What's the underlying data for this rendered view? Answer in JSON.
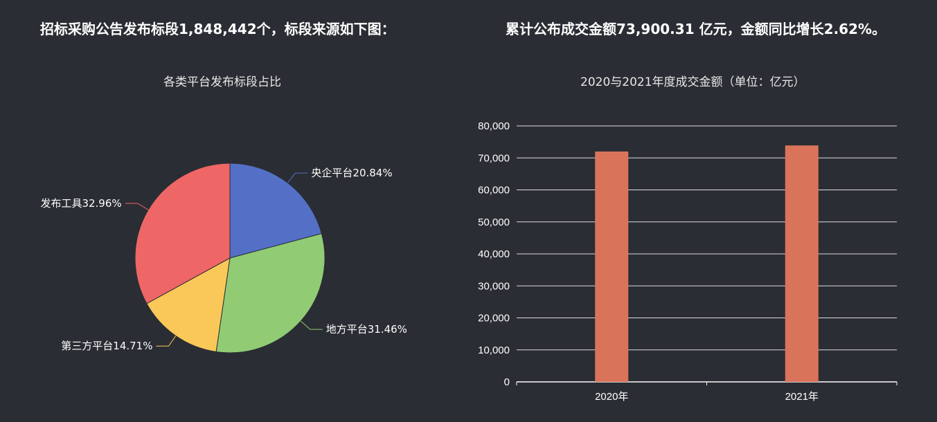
{
  "headline": {
    "left": "招标采购公告发布标段1,848,442个，标段来源如下图：",
    "right": "累计公布成交金额73,900.31 亿元，金额同比增长2.62%。"
  },
  "chart_data": [
    {
      "type": "pie",
      "title": "各类平台发布标段占比",
      "slices": [
        {
          "name": "央企平台",
          "value": 20.84,
          "label": "央企平台20.84%",
          "color": "#5470c6"
        },
        {
          "name": "地方平台",
          "value": 31.46,
          "label": "地方平台31.46%",
          "color": "#91cc75"
        },
        {
          "name": "第三方平台",
          "value": 14.71,
          "label": "第三方平台14.71%",
          "color": "#fac858"
        },
        {
          "name": "发布工具",
          "value": 32.96,
          "label": "发布工具32.96%",
          "color": "#ee6666"
        }
      ]
    },
    {
      "type": "bar",
      "title": "2020与2021年度成交金额（单位：亿元）",
      "categories": [
        "2020年",
        "2021年"
      ],
      "values": [
        72000,
        73900.31
      ],
      "ylim": [
        0,
        80000
      ],
      "yticks": [
        "0",
        "10,000",
        "20,000",
        "30,000",
        "40,000",
        "50,000",
        "60,000",
        "70,000",
        "80,000"
      ],
      "color": "#d9745a",
      "grid": true
    }
  ]
}
